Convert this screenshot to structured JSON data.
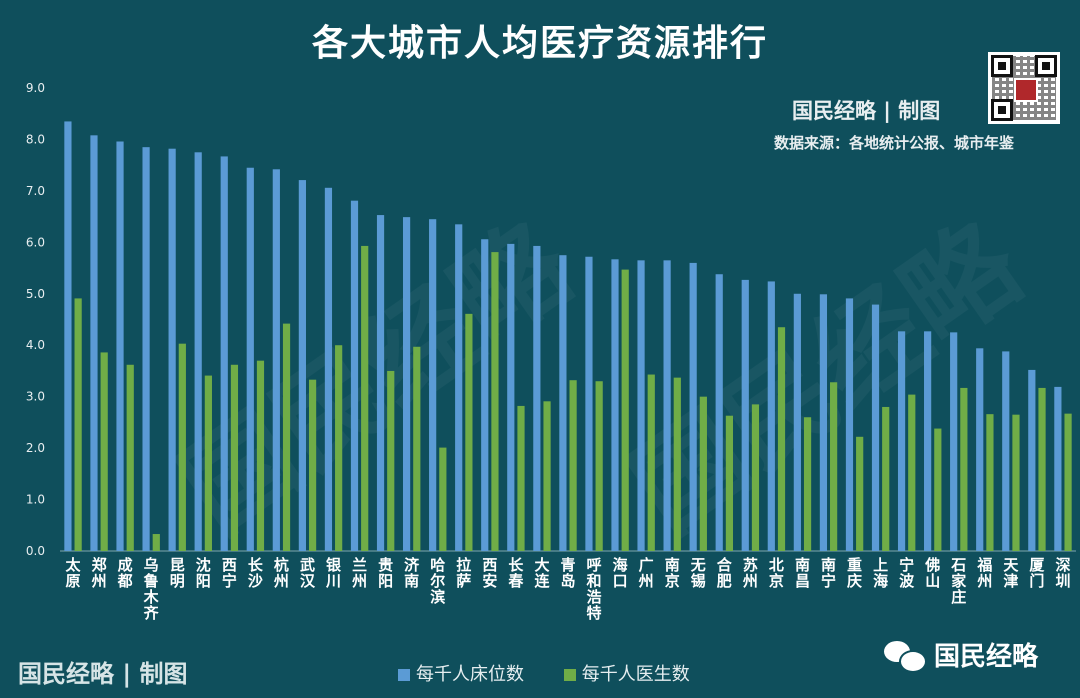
{
  "title": "各大城市人均医疗资源排行",
  "brand_right": "国民经略 | 制图",
  "source": "数据来源：各地统计公报、城市年鉴",
  "brand_left": "国民经略 | 制图",
  "wechat_label": "国民经略",
  "watermark_text": "国民经略",
  "colors": {
    "beds": "#5b9bd5",
    "doctors": "#70ad47",
    "background": "#0f4f5c"
  },
  "chart_data": {
    "type": "bar",
    "title": "各大城市人均医疗资源排行",
    "ylim": [
      0,
      9
    ],
    "yticks": [
      "0.0",
      "1.0",
      "2.0",
      "3.0",
      "4.0",
      "5.0",
      "6.0",
      "7.0",
      "8.0",
      "9.0"
    ],
    "grid": false,
    "legend_position": "bottom",
    "categories": [
      "太原",
      "郑州",
      "成都",
      "乌鲁木齐",
      "昆明",
      "沈阳",
      "西宁",
      "长沙",
      "杭州",
      "武汉",
      "银川",
      "兰州",
      "贵阳",
      "济南",
      "哈尔滨",
      "拉萨",
      "西安",
      "长春",
      "大连",
      "青岛",
      "呼和浩特",
      "海口",
      "广州",
      "南京",
      "无锡",
      "合肥",
      "苏州",
      "北京",
      "南昌",
      "南宁",
      "重庆",
      "上海",
      "宁波",
      "佛山",
      "石家庄",
      "福州",
      "天津",
      "厦门",
      "深圳"
    ],
    "series": [
      {
        "name": "每千人床位数",
        "color": "#5b9bd5",
        "values": [
          8.35,
          8.08,
          7.96,
          7.85,
          7.82,
          7.75,
          7.67,
          7.45,
          7.42,
          7.21,
          7.06,
          6.81,
          6.53,
          6.49,
          6.45,
          6.35,
          6.06,
          5.97,
          5.93,
          5.75,
          5.72,
          5.67,
          5.65,
          5.65,
          5.6,
          5.38,
          5.27,
          5.24,
          5.0,
          4.99,
          4.91,
          4.79,
          4.27,
          4.27,
          4.25,
          3.94,
          3.88,
          3.52,
          3.19
        ]
      },
      {
        "name": "每千人医生数",
        "color": "#70ad47",
        "values": [
          4.91,
          3.86,
          3.62,
          0.33,
          4.03,
          3.41,
          3.62,
          3.7,
          4.42,
          3.33,
          4.0,
          5.93,
          3.5,
          3.97,
          2.01,
          4.61,
          5.81,
          2.82,
          2.91,
          3.32,
          3.3,
          5.47,
          3.43,
          3.37,
          3.0,
          2.63,
          2.85,
          4.35,
          2.6,
          3.28,
          2.22,
          2.8,
          3.04,
          2.38,
          3.17,
          2.66,
          2.65,
          3.17,
          2.67
        ]
      }
    ]
  }
}
